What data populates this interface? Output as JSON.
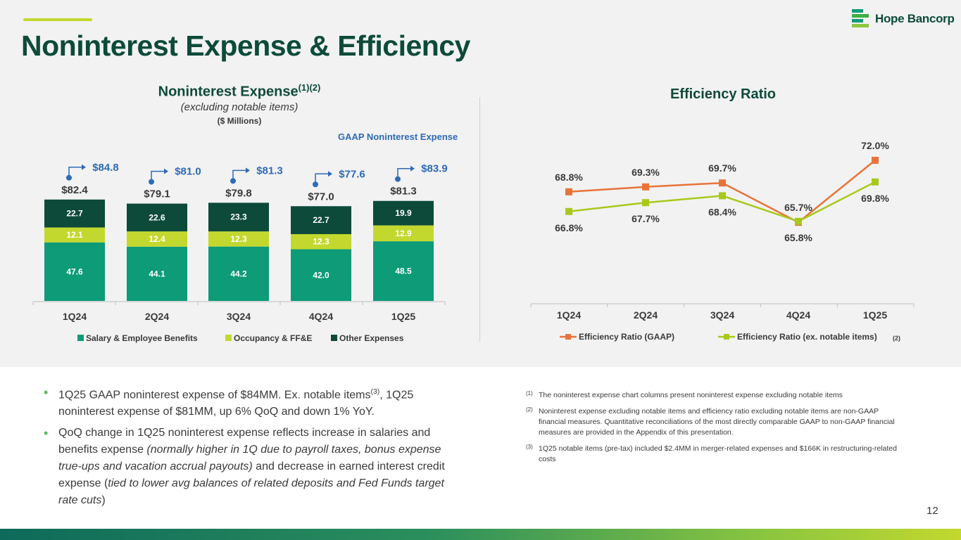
{
  "header": {
    "title": "Noninterest Expense & Efficiency",
    "logo_text": "Hope Bancorp"
  },
  "colors": {
    "salary": "#0d9b78",
    "occupancy": "#c3d82e",
    "other": "#0d4a3a",
    "gaap_blue": "#2e6bb7",
    "line_gaap": "#e8733a",
    "line_adj": "#a8c91b"
  },
  "left_chart": {
    "title": "Noninterest Expense",
    "title_sup": "(1)(2)",
    "subtitle": "(excluding notable items)",
    "units": "($ Millions)",
    "gaap_label": "GAAP Noninterest Expense"
  },
  "right_chart": {
    "title": "Efficiency Ratio",
    "legend_sup": "(2)"
  },
  "chart_data": [
    {
      "type": "bar",
      "stacked": true,
      "title": "Noninterest Expense(1)(2)",
      "categories": [
        "1Q24",
        "2Q24",
        "3Q24",
        "4Q24",
        "1Q25"
      ],
      "series": [
        {
          "name": "Salary & Employee Benefits",
          "values": [
            47.6,
            44.1,
            44.2,
            42.0,
            48.5
          ],
          "labels": [
            "47.6",
            "44.1",
            "44.2",
            "42.0",
            "48.5"
          ]
        },
        {
          "name": "Occupancy & FF&E",
          "values": [
            12.1,
            12.4,
            12.3,
            12.3,
            12.9
          ],
          "labels": [
            "12.1",
            "12.4",
            "12.3",
            "12.3",
            "12.9"
          ]
        },
        {
          "name": "Other Expenses",
          "values": [
            22.7,
            22.6,
            23.3,
            22.7,
            19.9
          ],
          "labels": [
            "22.7",
            "22.6",
            "23.3",
            "22.7",
            "19.9"
          ]
        }
      ],
      "totals": [
        "$82.4",
        "$79.1",
        "$79.8",
        "$77.0",
        "$81.3"
      ],
      "gaap_totals": [
        "$84.8",
        "$81.0",
        "$81.3",
        "$77.6",
        "$83.9"
      ],
      "legend": "bottom"
    },
    {
      "type": "line",
      "title": "Efficiency Ratio",
      "categories": [
        "1Q24",
        "2Q24",
        "3Q24",
        "4Q24",
        "1Q25"
      ],
      "series": [
        {
          "name": "Efficiency Ratio (GAAP)",
          "values": [
            68.8,
            69.3,
            69.7,
            65.7,
            72.0
          ],
          "labels": [
            "68.8%",
            "69.3%",
            "69.7%",
            "65.7%",
            "72.0%"
          ]
        },
        {
          "name": "Efficiency Ratio (ex. notable items)",
          "values": [
            66.8,
            67.7,
            68.4,
            65.8,
            69.8
          ],
          "labels": [
            "66.8%",
            "67.7%",
            "68.4%",
            "65.8%",
            "69.8%"
          ]
        }
      ],
      "legend": "bottom"
    }
  ],
  "bullets": [
    {
      "p1": "1Q25 GAAP noninterest expense of $84MM. Ex. notable items",
      "sup": "(3)",
      "p2": ", 1Q25 noninterest expense of $81MM, up 6% QoQ and down 1% YoY."
    },
    {
      "p1": "QoQ change in 1Q25 noninterest expense reflects increase in salaries and benefits expense ",
      "i1": "(normally higher in 1Q due to payroll taxes, bonus expense true-ups and vacation accrual payouts)",
      "p2": " and decrease in earned interest credit expense (",
      "i2": "tied to lower avg balances of related deposits and Fed Funds target rate cuts",
      "p3": ")"
    }
  ],
  "footnotes": [
    {
      "num": "(1)",
      "text": "The noninterest expense chart columns present noninterest expense excluding notable items"
    },
    {
      "num": "(2)",
      "text": "Noninterest expense excluding notable items and efficiency ratio excluding notable items are non-GAAP financial measures. Quantitative reconciliations of the most directly comparable GAAP to non-GAAP financial measures are provided in the Appendix of this presentation."
    },
    {
      "num": "(3)",
      "text": "1Q25 notable items (pre-tax) included $2.4MM in merger-related expenses and $166K in restructuring-related costs"
    }
  ],
  "page_number": "12"
}
